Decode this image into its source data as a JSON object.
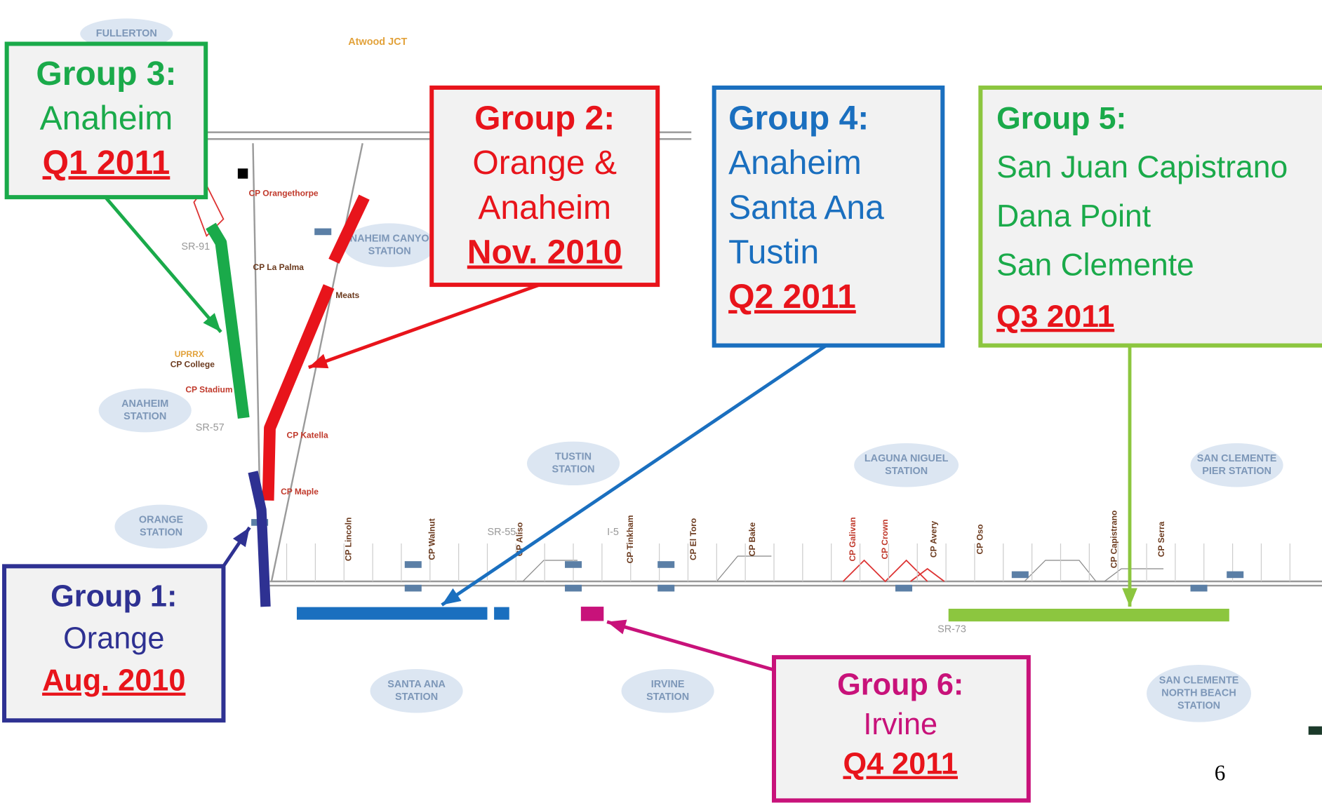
{
  "groups": [
    {
      "title": "Group 1:",
      "lines": [
        "Orange"
      ],
      "date": "Aug. 2010"
    },
    {
      "title": "Group 2:",
      "lines": [
        "Orange &",
        "Anaheim"
      ],
      "date": "Nov. 2010"
    },
    {
      "title": "Group 3:",
      "lines": [
        "Anaheim"
      ],
      "date": "Q1 2011"
    },
    {
      "title": "Group 4:",
      "lines": [
        "Anaheim",
        "Santa Ana",
        "Tustin"
      ],
      "date": "Q2 2011"
    },
    {
      "title": "Group 5:",
      "lines": [
        "San Juan Capistrano",
        "Dana Point",
        "San Clemente"
      ],
      "date": "Q3 2011"
    },
    {
      "title": "Group 6:",
      "lines": [
        "Irvine"
      ],
      "date": "Q4 2011"
    }
  ],
  "map": {
    "junction": "Atwood JCT",
    "stations": [
      {
        "lines": [
          "FULLERTON"
        ]
      },
      {
        "lines": [
          "ANAHEIM",
          "STATION"
        ]
      },
      {
        "lines": [
          "ORANGE",
          "STATION"
        ]
      },
      {
        "lines": [
          "TUSTIN",
          "STATION"
        ]
      },
      {
        "lines": [
          "SANTA ANA",
          "STATION"
        ]
      },
      {
        "lines": [
          "IRVINE",
          "STATION"
        ]
      },
      {
        "lines": [
          "LAGUNA NIGUEL",
          "STATION"
        ]
      },
      {
        "lines": [
          "SAN CLEMENTE",
          "PIER STATION"
        ]
      },
      {
        "lines": [
          "SAN CLEMENTE",
          "NORTH BEACH",
          "STATION"
        ]
      },
      {
        "lines": [
          "ANAHEIM CANYON",
          "STATION"
        ]
      }
    ],
    "control_points": [
      "CP Orangethorpe",
      "CP La Palma",
      "UPRRX",
      "CP College",
      "CP Stadium",
      "CP Katella",
      "CP Maple",
      "Meats",
      "CP Lincoln",
      "CP Walnut",
      "CP Aliso",
      "CP Tinkham",
      "CP El Toro",
      "CP Bake",
      "CP Galivan",
      "CP Crown",
      "CP Avery",
      "CP Oso",
      "CP Capistrano",
      "CP Serra"
    ],
    "routes": [
      "SR-91",
      "SR-57",
      "SR-55",
      "I-5",
      "SR-73"
    ]
  },
  "page_number": "6"
}
